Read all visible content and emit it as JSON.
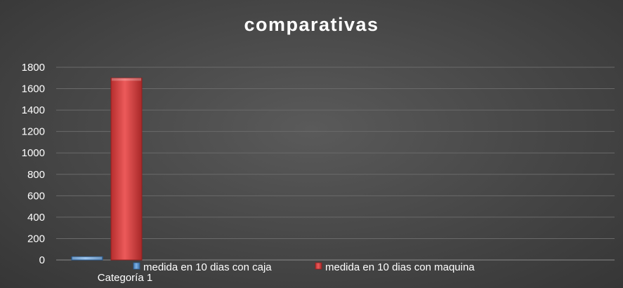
{
  "chart_data": {
    "type": "bar",
    "title": "comparativas",
    "categories": [
      "Categoría 1"
    ],
    "series": [
      {
        "name": "medida en 10 dias con caja",
        "values": [
          30
        ],
        "color": "#5b9bd5"
      },
      {
        "name": "medida en 10 dias con maquina",
        "values": [
          1700
        ],
        "color": "#d94141"
      }
    ],
    "ylim": [
      0,
      1800
    ],
    "yticks": [
      0,
      200,
      400,
      600,
      800,
      1000,
      1200,
      1400,
      1600,
      1800
    ],
    "grid": true,
    "legend_position": "bottom"
  }
}
